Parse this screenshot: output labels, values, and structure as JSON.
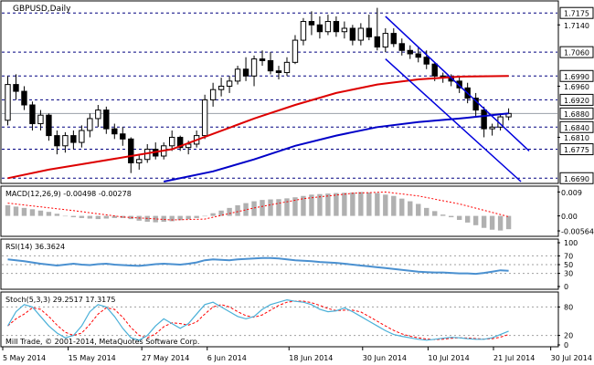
{
  "chart_data": {
    "type": "line",
    "title": "GBPUSD,Daily",
    "colors": {
      "background": "#ffffff",
      "frame": "#000000",
      "level_dashes": "#000080",
      "candle_body_up": "#ffffff",
      "candle_body_down": "#000000",
      "ma_fast": "#dd0000",
      "ma_slow": "#0000c8",
      "channel": "#0000dd",
      "macd_hist": "#b0b0b0",
      "macd_signal": "#ff0000",
      "rsi": "#4a90d0",
      "rsi_levels": "#a0a0a0",
      "stoch_main": "#4ab0d8",
      "stoch_signal": "#ff0000"
    },
    "price_panel": {
      "ylim": [
        1.668,
        1.7205
      ],
      "level_lines": [
        {
          "value": 1.7175,
          "label": "1.7175",
          "style": "dashed"
        },
        {
          "value": 1.706,
          "label": "1.7060",
          "style": "dashed"
        },
        {
          "value": 1.699,
          "label": "1.6990",
          "style": "dashed"
        },
        {
          "value": 1.692,
          "label": "1.6920",
          "style": "dashed"
        },
        {
          "value": 1.688,
          "label": "1.6880",
          "style": "solid-current"
        },
        {
          "value": 1.684,
          "label": "1.6840",
          "style": "dashed"
        },
        {
          "value": 1.6775,
          "label": "1.6775",
          "style": "dashed"
        },
        {
          "value": 1.669,
          "label": "1.6690",
          "style": "dashed"
        }
      ],
      "ticks": [
        {
          "value": 1.714,
          "label": "1.7140"
        },
        {
          "value": 1.696,
          "label": "1.6960"
        },
        {
          "value": 1.681,
          "label": "1.6810"
        }
      ],
      "candles": [
        [
          1.686,
          1.699,
          1.6845,
          1.6965
        ],
        [
          1.6965,
          1.6995,
          1.692,
          1.6945
        ],
        [
          1.6945,
          1.696,
          1.689,
          1.6905
        ],
        [
          1.6905,
          1.6915,
          1.683,
          1.685
        ],
        [
          1.685,
          1.689,
          1.683,
          1.6875
        ],
        [
          1.6875,
          1.688,
          1.68,
          1.6815
        ],
        [
          1.6815,
          1.683,
          1.676,
          1.6785
        ],
        [
          1.6785,
          1.6825,
          1.6765,
          1.6815
        ],
        [
          1.6815,
          1.683,
          1.6775,
          1.6795
        ],
        [
          1.6795,
          1.6845,
          1.678,
          1.683
        ],
        [
          1.683,
          1.688,
          1.681,
          1.6865
        ],
        [
          1.6865,
          1.6905,
          1.684,
          1.689
        ],
        [
          1.689,
          1.69,
          1.682,
          1.6835
        ],
        [
          1.6835,
          1.685,
          1.6805,
          1.682
        ],
        [
          1.682,
          1.684,
          1.6785,
          1.6805
        ],
        [
          1.6805,
          1.681,
          1.6705,
          1.6735
        ],
        [
          1.6735,
          1.676,
          1.6715,
          1.6745
        ],
        [
          1.6745,
          1.679,
          1.6735,
          1.6775
        ],
        [
          1.6775,
          1.6795,
          1.6745,
          1.6755
        ],
        [
          1.6755,
          1.6795,
          1.6745,
          1.6785
        ],
        [
          1.6785,
          1.683,
          1.677,
          1.681
        ],
        [
          1.681,
          1.6815,
          1.677,
          1.678
        ],
        [
          1.678,
          1.68,
          1.676,
          1.679
        ],
        [
          1.679,
          1.683,
          1.678,
          1.6815
        ],
        [
          1.6815,
          1.6935,
          1.6805,
          1.692
        ],
        [
          1.692,
          1.697,
          1.69,
          1.695
        ],
        [
          1.695,
          1.6985,
          1.693,
          1.696
        ],
        [
          1.696,
          1.699,
          1.694,
          1.6975
        ],
        [
          1.6975,
          1.702,
          1.6965,
          1.701
        ],
        [
          1.701,
          1.7045,
          1.6975,
          1.699
        ],
        [
          1.699,
          1.705,
          1.696,
          1.704
        ],
        [
          1.704,
          1.7065,
          1.702,
          1.7035
        ],
        [
          1.7035,
          1.706,
          1.6995,
          1.7005
        ],
        [
          1.7005,
          1.702,
          1.698,
          1.7
        ],
        [
          1.7,
          1.7045,
          1.699,
          1.703
        ],
        [
          1.703,
          1.711,
          1.7025,
          1.7095
        ],
        [
          1.7095,
          1.716,
          1.708,
          1.715
        ],
        [
          1.715,
          1.718,
          1.711,
          1.714
        ],
        [
          1.714,
          1.7165,
          1.71,
          1.712
        ],
        [
          1.712,
          1.717,
          1.711,
          1.715
        ],
        [
          1.715,
          1.7165,
          1.7105,
          1.712
        ],
        [
          1.712,
          1.715,
          1.71,
          1.713
        ],
        [
          1.713,
          1.714,
          1.708,
          1.7095
        ],
        [
          1.7095,
          1.7145,
          1.708,
          1.713
        ],
        [
          1.713,
          1.717,
          1.7095,
          1.7105
        ],
        [
          1.7105,
          1.719,
          1.7065,
          1.7075
        ],
        [
          1.7075,
          1.713,
          1.706,
          1.7115
        ],
        [
          1.7115,
          1.713,
          1.7075,
          1.7085
        ],
        [
          1.7085,
          1.71,
          1.705,
          1.7065
        ],
        [
          1.7065,
          1.708,
          1.704,
          1.7055
        ],
        [
          1.7055,
          1.7075,
          1.703,
          1.7045
        ],
        [
          1.7045,
          1.7065,
          1.701,
          1.7025
        ],
        [
          1.7025,
          1.703,
          1.6975,
          1.699
        ],
        [
          1.699,
          1.7,
          1.697,
          1.6985
        ],
        [
          1.6985,
          1.6995,
          1.696,
          1.6975
        ],
        [
          1.6975,
          1.699,
          1.694,
          1.6955
        ],
        [
          1.6955,
          1.697,
          1.691,
          1.6925
        ],
        [
          1.6925,
          1.694,
          1.687,
          1.689
        ],
        [
          1.689,
          1.69,
          1.681,
          1.6835
        ],
        [
          1.6835,
          1.685,
          1.6815,
          1.684
        ],
        [
          1.684,
          1.688,
          1.683,
          1.687
        ],
        [
          1.687,
          1.6895,
          1.686,
          1.688
        ]
      ],
      "moving_averages": [
        {
          "name": "",
          "color": "#dd0000",
          "values": [
            [
              0,
              1.669
            ],
            [
              5,
              1.6715
            ],
            [
              10,
              1.6735
            ],
            [
              15,
              1.6755
            ],
            [
              20,
              1.6775
            ],
            [
              25,
              1.682
            ],
            [
              30,
              1.6865
            ],
            [
              35,
              1.6905
            ],
            [
              40,
              1.694
            ],
            [
              45,
              1.6965
            ],
            [
              50,
              1.698
            ],
            [
              55,
              1.6988
            ],
            [
              61,
              1.699
            ]
          ]
        },
        {
          "name": "",
          "color": "#0000c8",
          "values": [
            [
              19,
              1.668
            ],
            [
              25,
              1.671
            ],
            [
              30,
              1.6745
            ],
            [
              35,
              1.6785
            ],
            [
              40,
              1.6815
            ],
            [
              45,
              1.684
            ],
            [
              50,
              1.6855
            ],
            [
              55,
              1.6865
            ],
            [
              61,
              1.688
            ]
          ]
        }
      ],
      "channel_lines": [
        {
          "from": [
            46,
            1.7165
          ],
          "to": [
            63.5,
            1.677
          ]
        },
        {
          "from": [
            46,
            1.704
          ],
          "to": [
            62.5,
            1.668
          ]
        }
      ]
    },
    "macd_panel": {
      "label": "MACD(12,26,9) -0.00498 -0.00278",
      "ylim": [
        -0.007,
        0.0105
      ],
      "ticks": [
        {
          "value": 0.009,
          "label": "0.009"
        },
        {
          "value": 0.0,
          "label": "0.00"
        },
        {
          "value": -0.00564,
          "label": "-0.00564"
        }
      ],
      "histogram": [
        0.004,
        0.0035,
        0.003,
        0.0025,
        0.002,
        0.0015,
        0.0008,
        0.0,
        -0.0005,
        -0.0008,
        -0.001,
        -0.0012,
        -0.001,
        -0.0008,
        -0.0008,
        -0.0012,
        -0.0018,
        -0.0022,
        -0.0024,
        -0.0022,
        -0.002,
        -0.0016,
        -0.0012,
        -0.0008,
        0.0,
        0.001,
        0.002,
        0.003,
        0.004,
        0.0048,
        0.0055,
        0.006,
        0.0062,
        0.0063,
        0.0066,
        0.007,
        0.0075,
        0.008,
        0.0082,
        0.0084,
        0.0086,
        0.0087,
        0.0088,
        0.009,
        0.0088,
        0.0086,
        0.008,
        0.0075,
        0.0065,
        0.0055,
        0.0045,
        0.003,
        0.0018,
        0.0005,
        -0.0005,
        -0.0015,
        -0.0025,
        -0.0035,
        -0.0045,
        -0.0052,
        -0.0055,
        -0.005
      ],
      "signal": [
        [
          0,
          0.0048
        ],
        [
          8,
          0.002
        ],
        [
          14,
          -0.0004
        ],
        [
          20,
          -0.0015
        ],
        [
          24,
          -0.0012
        ],
        [
          30,
          0.003
        ],
        [
          36,
          0.0065
        ],
        [
          42,
          0.0085
        ],
        [
          46,
          0.009
        ],
        [
          50,
          0.0075
        ],
        [
          55,
          0.0045
        ],
        [
          60,
          0.0005
        ],
        [
          61,
          -0.0003
        ]
      ]
    },
    "rsi_panel": {
      "label": "RSI(14) 36.3624",
      "ylim": [
        0,
        100
      ],
      "levels": [
        30,
        50,
        70
      ],
      "ticks": [
        {
          "value": 100,
          "label": "100"
        },
        {
          "value": 70,
          "label": "70"
        },
        {
          "value": 50,
          "label": "50"
        },
        {
          "value": 30,
          "label": "30"
        },
        {
          "value": 0,
          "label": "0"
        }
      ],
      "values": [
        62,
        60,
        58,
        55,
        52,
        50,
        48,
        50,
        52,
        50,
        49,
        51,
        52,
        50,
        49,
        48,
        47,
        49,
        51,
        52,
        51,
        50,
        52,
        55,
        60,
        62,
        61,
        60,
        62,
        63,
        64,
        65,
        65,
        64,
        62,
        60,
        59,
        58,
        56,
        55,
        54,
        52,
        50,
        48,
        46,
        44,
        42,
        40,
        38,
        36,
        34,
        33,
        32,
        32,
        31,
        30,
        30,
        29,
        31,
        34,
        37,
        36
      ]
    },
    "stoch_panel": {
      "label": "Stoch(5,3,3) 29.2517 17.3175",
      "ylim": [
        0,
        100
      ],
      "levels": [
        20,
        80
      ],
      "ticks": [
        {
          "value": 80,
          "label": "80"
        },
        {
          "value": 20,
          "label": "20"
        },
        {
          "value": 0,
          "label": "0"
        }
      ],
      "main": [
        40,
        70,
        85,
        80,
        60,
        40,
        25,
        15,
        20,
        40,
        70,
        85,
        80,
        60,
        35,
        15,
        10,
        20,
        40,
        55,
        45,
        35,
        45,
        65,
        85,
        90,
        80,
        70,
        60,
        55,
        60,
        75,
        85,
        90,
        95,
        92,
        90,
        85,
        75,
        70,
        72,
        78,
        70,
        60,
        50,
        40,
        30,
        22,
        18,
        15,
        12,
        10,
        12,
        14,
        16,
        15,
        13,
        12,
        12,
        15,
        22,
        29
      ]
    },
    "x_axis": {
      "tick_labels": [
        {
          "index": 0,
          "label": "5 May 2014"
        },
        {
          "index": 8,
          "label": "15 May 2014"
        },
        {
          "index": 17,
          "label": "27 May 2014"
        },
        {
          "index": 25,
          "label": "6 Jun 2014"
        },
        {
          "index": 35,
          "label": "18 Jun 2014"
        },
        {
          "index": 44,
          "label": "30 Jun 2014"
        },
        {
          "index": 52,
          "label": "10 Jul 2014"
        },
        {
          "index": 60,
          "label": "21 Jul 2014"
        },
        {
          "index": 67,
          "label": "30 Jul 2014"
        }
      ]
    },
    "footer_text": "Mill Trade, © 2001-2014, MetaQuotes Software Corp."
  }
}
